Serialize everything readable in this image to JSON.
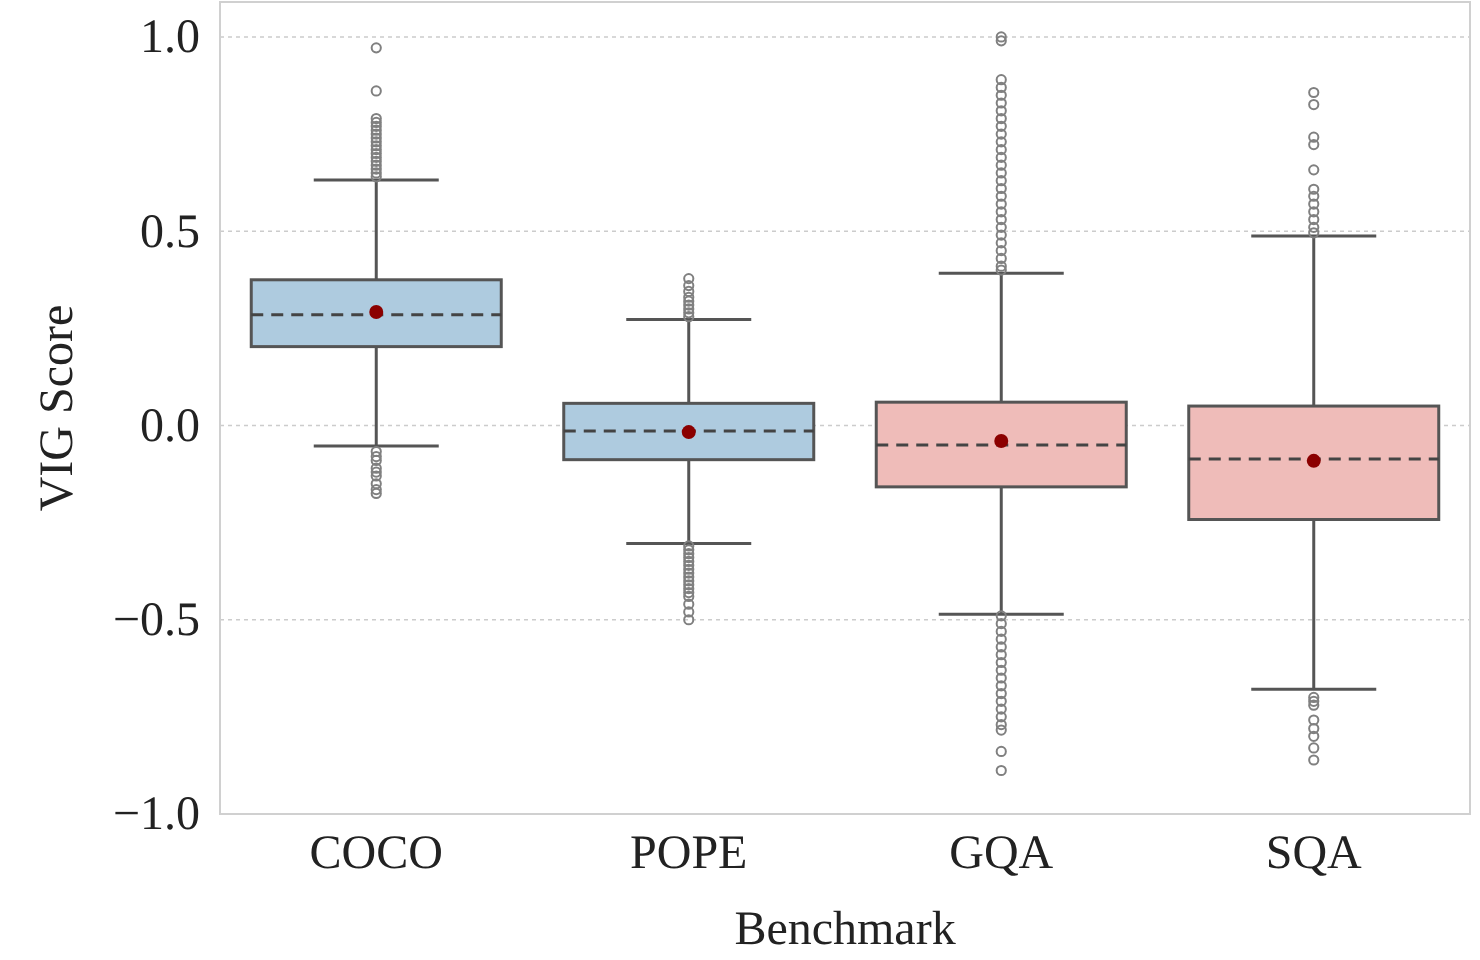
{
  "chart_data": {
    "type": "box",
    "xlabel": "Benchmark",
    "ylabel": "VIG Score",
    "categories": [
      "COCO",
      "POPE",
      "GQA",
      "SQA"
    ],
    "colors": [
      "#aecbdf",
      "#aecbdf",
      "#efbcb9",
      "#efbcb9"
    ],
    "boxes": [
      {
        "low": -0.053,
        "q1": 0.203,
        "median": 0.285,
        "q3": 0.375,
        "high": 0.632,
        "mean": 0.292,
        "outliers": [
          0.972,
          0.861,
          0.79,
          0.78,
          0.77,
          0.76,
          0.75,
          0.74,
          0.73,
          0.72,
          0.71,
          0.7,
          0.69,
          0.68,
          0.67,
          0.66,
          0.65,
          0.64,
          -0.067,
          -0.08,
          -0.09,
          -0.11,
          -0.12,
          -0.13,
          -0.15,
          -0.165,
          -0.175
        ]
      },
      {
        "low": -0.304,
        "q1": -0.088,
        "median": -0.014,
        "q3": 0.057,
        "high": 0.273,
        "mean": -0.017,
        "outliers": [
          0.378,
          0.36,
          0.345,
          0.33,
          0.32,
          0.31,
          0.3,
          0.29,
          0.28,
          -0.31,
          -0.32,
          -0.33,
          -0.34,
          -0.35,
          -0.36,
          -0.37,
          -0.38,
          -0.39,
          -0.4,
          -0.41,
          -0.42,
          -0.43,
          -0.44,
          -0.46,
          -0.48,
          -0.5
        ]
      },
      {
        "low": -0.486,
        "q1": -0.158,
        "median": -0.05,
        "q3": 0.06,
        "high": 0.392,
        "mean": -0.04,
        "outliers": [
          1.0,
          0.99,
          0.89,
          0.87,
          0.85,
          0.83,
          0.81,
          0.79,
          0.77,
          0.75,
          0.73,
          0.71,
          0.69,
          0.67,
          0.65,
          0.63,
          0.61,
          0.59,
          0.57,
          0.55,
          0.53,
          0.51,
          0.49,
          0.47,
          0.45,
          0.43,
          0.41,
          0.4,
          -0.49,
          -0.51,
          -0.53,
          -0.55,
          -0.57,
          -0.59,
          -0.61,
          -0.63,
          -0.65,
          -0.67,
          -0.69,
          -0.71,
          -0.73,
          -0.75,
          -0.77,
          -0.784,
          -0.839,
          -0.888
        ]
      },
      {
        "low": -0.679,
        "q1": -0.242,
        "median": -0.086,
        "q3": 0.05,
        "high": 0.488,
        "mean": -0.091,
        "outliers": [
          0.857,
          0.826,
          0.742,
          0.723,
          0.658,
          0.608,
          0.59,
          0.57,
          0.55,
          0.53,
          0.51,
          0.496,
          -0.7,
          -0.71,
          -0.72,
          -0.758,
          -0.78,
          -0.8,
          -0.83,
          -0.861
        ]
      }
    ],
    "ylim": [
      -1.0,
      1.09
    ],
    "yticks": [
      {
        "value": -1.0,
        "label": "−1.0"
      },
      {
        "value": -0.5,
        "label": "−0.5"
      },
      {
        "value": 0.0,
        "label": "0.0"
      },
      {
        "value": 0.5,
        "label": "0.5"
      },
      {
        "value": 1.0,
        "label": "1.0"
      }
    ],
    "grid": "y"
  }
}
